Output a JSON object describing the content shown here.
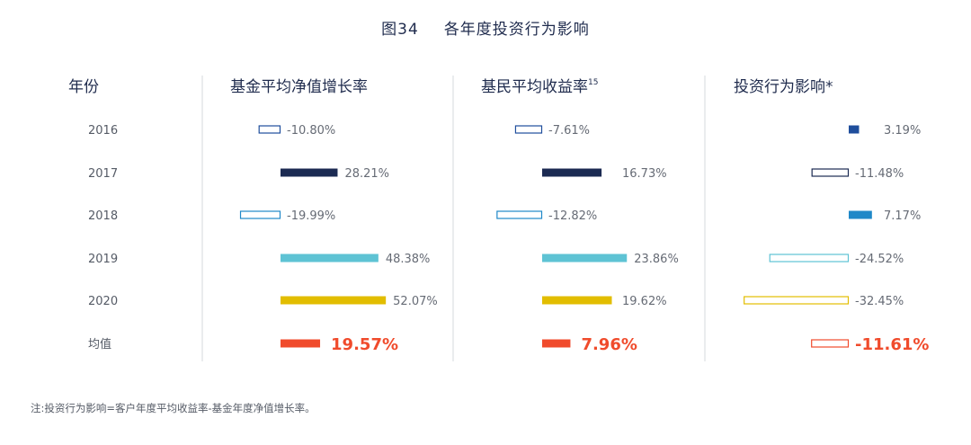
{
  "title": {
    "number": "图34",
    "text": "各年度投资行为影响"
  },
  "note": "注:投资行为影响=客户年度平均收益率-基金年度净值增长率。",
  "chart_data": {
    "type": "bar",
    "row_header": "年份",
    "categories": [
      "2016",
      "2017",
      "2018",
      "2019",
      "2020",
      "均值"
    ],
    "series": [
      {
        "name": "基金平均净值增长率",
        "values": [
          -10.8,
          28.21,
          -19.99,
          48.38,
          52.07,
          19.57
        ],
        "labels": [
          "-10.80%",
          "28.21%",
          "-19.99%",
          "48.38%",
          "52.07%",
          "19.57%"
        ]
      },
      {
        "name": "基民平均收益率",
        "superscript": "15",
        "values": [
          -7.61,
          16.73,
          -12.82,
          23.86,
          19.62,
          7.96
        ],
        "labels": [
          "-7.61%",
          "16.73%",
          "-12.82%",
          "23.86%",
          "19.62%",
          "7.96%"
        ]
      },
      {
        "name": "投资行为影响*",
        "values": [
          3.19,
          -11.48,
          7.17,
          -24.52,
          -32.45,
          -11.61
        ],
        "labels": [
          "3.19%",
          "-11.48%",
          "7.17%",
          "-24.52%",
          "-32.45%",
          "-11.61%"
        ]
      }
    ],
    "row_colors": [
      "#1f4e9c",
      "#1b2a52",
      "#1f88c8",
      "#5ec3d4",
      "#e2bd00",
      "#f04b2c"
    ],
    "emphasis_color": "#f04b2c"
  }
}
